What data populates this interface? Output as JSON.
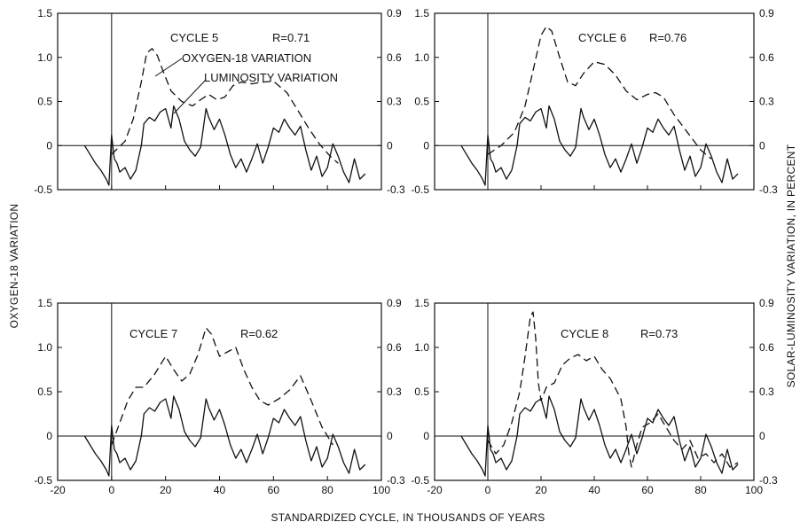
{
  "figure": {
    "left_axis_label": "OXYGEN-18 VARIATION",
    "right_axis_label": "SOLAR-LUMINOSITY VARIATION, IN PERCENT",
    "x_axis_label": "STANDARDIZED CYCLE, IN THOUSANDS OF YEARS",
    "legend_oxygen": "OXYGEN-18 VARIATION",
    "legend_luminosity": "LUMINOSITY VARIATION"
  },
  "chart_data": [
    {
      "type": "line",
      "cycle_label": "CYCLE 5",
      "r_label": "R=0.71",
      "xlim": [
        -20,
        100
      ],
      "ylim_left": [
        -0.5,
        1.5
      ],
      "ylim_right": [
        -0.3,
        0.9
      ],
      "x_ticks": [
        "-20",
        "0",
        "20",
        "40",
        "60",
        "80",
        "100"
      ],
      "y_ticks_left": [
        "1.5",
        "1.0",
        "0.5",
        "0",
        "-0.5"
      ],
      "y_ticks_right": [
        "0.9",
        "0.6",
        "0.3",
        "0",
        "-0.3"
      ],
      "series": [
        {
          "name": "OXYGEN-18 VARIATION",
          "style": "dashed",
          "x": [
            0,
            5,
            8,
            11,
            13,
            15,
            17,
            19,
            22,
            26,
            30,
            33,
            36,
            39,
            42,
            45,
            48,
            52,
            56,
            60,
            65,
            70,
            73,
            77,
            81,
            84
          ],
          "y": [
            -0.1,
            0.05,
            0.3,
            0.72,
            1.05,
            1.1,
            1.02,
            0.85,
            0.62,
            0.5,
            0.45,
            0.52,
            0.58,
            0.52,
            0.55,
            0.68,
            0.72,
            0.7,
            0.72,
            0.73,
            0.6,
            0.35,
            0.2,
            0.02,
            -0.12,
            -0.2
          ]
        },
        {
          "name": "LUMINOSITY VARIATION",
          "style": "solid",
          "x": [
            -10,
            -8,
            -6,
            -4,
            -2,
            -1,
            0,
            1,
            2,
            3,
            5,
            7,
            9,
            11,
            12,
            14,
            16,
            18,
            20,
            22,
            23,
            25,
            27,
            29,
            31,
            33,
            35,
            36,
            38,
            40,
            42,
            44,
            46,
            48,
            50,
            52,
            54,
            56,
            58,
            60,
            62,
            64,
            66,
            68,
            70,
            72,
            74,
            76,
            78,
            80,
            82,
            84,
            86,
            88,
            90,
            92,
            94
          ],
          "y": [
            0,
            -0.1,
            -0.2,
            -0.28,
            -0.38,
            -0.45,
            0.12,
            -0.15,
            -0.2,
            -0.3,
            -0.25,
            -0.38,
            -0.28,
            0.0,
            0.25,
            0.32,
            0.28,
            0.38,
            0.42,
            0.2,
            0.45,
            0.3,
            0.05,
            -0.05,
            -0.12,
            -0.02,
            0.42,
            0.32,
            0.18,
            0.3,
            0.12,
            -0.1,
            -0.25,
            -0.15,
            -0.3,
            -0.15,
            0.02,
            -0.2,
            -0.02,
            0.2,
            0.15,
            0.3,
            0.2,
            0.12,
            0.22,
            -0.05,
            -0.28,
            -0.12,
            -0.35,
            -0.25,
            0.02,
            -0.12,
            -0.3,
            -0.42,
            -0.15,
            -0.38,
            -0.32
          ]
        }
      ]
    },
    {
      "type": "line",
      "cycle_label": "CYCLE 6",
      "r_label": "R=0.76",
      "xlim": [
        -20,
        100
      ],
      "ylim_left": [
        -0.5,
        1.5
      ],
      "ylim_right": [
        -0.3,
        0.9
      ],
      "x_ticks": [
        "-20",
        "0",
        "20",
        "40",
        "60",
        "80",
        "100"
      ],
      "y_ticks_left": [
        "1.5",
        "1.0",
        "0.5",
        "0",
        "-0.5"
      ],
      "y_ticks_right": [
        "0.9",
        "0.6",
        "0.3",
        "0",
        "-0.3"
      ],
      "series": [
        {
          "name": "OXYGEN-18 VARIATION",
          "style": "dashed",
          "x": [
            0,
            5,
            10,
            14,
            17,
            20,
            22,
            24,
            27,
            30,
            33,
            36,
            40,
            44,
            48,
            52,
            56,
            60,
            63,
            66,
            70,
            75,
            80,
            84
          ],
          "y": [
            -0.1,
            0.0,
            0.15,
            0.45,
            0.85,
            1.25,
            1.35,
            1.3,
            1.0,
            0.72,
            0.68,
            0.82,
            0.95,
            0.92,
            0.8,
            0.62,
            0.52,
            0.58,
            0.6,
            0.55,
            0.35,
            0.15,
            -0.05,
            -0.15
          ]
        },
        {
          "name": "LUMINOSITY VARIATION",
          "style": "solid",
          "x": [
            -10,
            -8,
            -6,
            -4,
            -2,
            -1,
            0,
            1,
            2,
            3,
            5,
            7,
            9,
            11,
            12,
            14,
            16,
            18,
            20,
            22,
            23,
            25,
            27,
            29,
            31,
            33,
            35,
            36,
            38,
            40,
            42,
            44,
            46,
            48,
            50,
            52,
            54,
            56,
            58,
            60,
            62,
            64,
            66,
            68,
            70,
            72,
            74,
            76,
            78,
            80,
            82,
            84,
            86,
            88,
            90,
            92,
            94
          ],
          "y": [
            0,
            -0.1,
            -0.2,
            -0.28,
            -0.38,
            -0.45,
            0.12,
            -0.15,
            -0.2,
            -0.3,
            -0.25,
            -0.38,
            -0.28,
            0.0,
            0.25,
            0.32,
            0.28,
            0.38,
            0.42,
            0.2,
            0.45,
            0.3,
            0.05,
            -0.05,
            -0.12,
            -0.02,
            0.42,
            0.32,
            0.18,
            0.3,
            0.12,
            -0.1,
            -0.25,
            -0.15,
            -0.3,
            -0.15,
            0.02,
            -0.2,
            -0.02,
            0.2,
            0.15,
            0.3,
            0.2,
            0.12,
            0.22,
            -0.05,
            -0.28,
            -0.12,
            -0.35,
            -0.25,
            0.02,
            -0.12,
            -0.3,
            -0.42,
            -0.15,
            -0.38,
            -0.32
          ]
        }
      ]
    },
    {
      "type": "line",
      "cycle_label": "CYCLE 7",
      "r_label": "R=0.62",
      "xlim": [
        -20,
        100
      ],
      "ylim_left": [
        -0.5,
        1.5
      ],
      "ylim_right": [
        -0.3,
        0.9
      ],
      "x_ticks": [
        "-20",
        "0",
        "20",
        "40",
        "60",
        "80",
        "100"
      ],
      "y_ticks_left": [
        "1.5",
        "1.0",
        "0.5",
        "0",
        "-0.5"
      ],
      "y_ticks_right": [
        "0.9",
        "0.6",
        "0.3",
        "0",
        "-0.3"
      ],
      "series": [
        {
          "name": "OXYGEN-18 VARIATION",
          "style": "dashed",
          "x": [
            0,
            3,
            6,
            9,
            12,
            16,
            20,
            23,
            26,
            29,
            32,
            35,
            37,
            40,
            43,
            46,
            49,
            52,
            55,
            58,
            62,
            66,
            70,
            74,
            78,
            82
          ],
          "y": [
            -0.1,
            0.15,
            0.4,
            0.55,
            0.55,
            0.7,
            0.9,
            0.75,
            0.62,
            0.7,
            0.92,
            1.22,
            1.15,
            0.9,
            0.95,
            1.0,
            0.75,
            0.55,
            0.4,
            0.35,
            0.42,
            0.52,
            0.68,
            0.4,
            0.1,
            -0.1
          ]
        },
        {
          "name": "LUMINOSITY VARIATION",
          "style": "solid",
          "x": [
            -10,
            -8,
            -6,
            -4,
            -2,
            -1,
            0,
            1,
            2,
            3,
            5,
            7,
            9,
            11,
            12,
            14,
            16,
            18,
            20,
            22,
            23,
            25,
            27,
            29,
            31,
            33,
            35,
            36,
            38,
            40,
            42,
            44,
            46,
            48,
            50,
            52,
            54,
            56,
            58,
            60,
            62,
            64,
            66,
            68,
            70,
            72,
            74,
            76,
            78,
            80,
            82,
            84,
            86,
            88,
            90,
            92,
            94
          ],
          "y": [
            0,
            -0.1,
            -0.2,
            -0.28,
            -0.38,
            -0.45,
            0.12,
            -0.15,
            -0.2,
            -0.3,
            -0.25,
            -0.38,
            -0.28,
            0.0,
            0.25,
            0.32,
            0.28,
            0.38,
            0.42,
            0.2,
            0.45,
            0.3,
            0.05,
            -0.05,
            -0.12,
            -0.02,
            0.42,
            0.32,
            0.18,
            0.3,
            0.12,
            -0.1,
            -0.25,
            -0.15,
            -0.3,
            -0.15,
            0.02,
            -0.2,
            -0.02,
            0.2,
            0.15,
            0.3,
            0.2,
            0.12,
            0.22,
            -0.05,
            -0.28,
            -0.12,
            -0.35,
            -0.25,
            0.02,
            -0.12,
            -0.3,
            -0.42,
            -0.15,
            -0.38,
            -0.32
          ]
        }
      ]
    },
    {
      "type": "line",
      "cycle_label": "CYCLE 8",
      "r_label": "R=0.73",
      "xlim": [
        -20,
        100
      ],
      "ylim_left": [
        -0.5,
        1.5
      ],
      "ylim_right": [
        -0.3,
        0.9
      ],
      "x_ticks": [
        "-20",
        "0",
        "20",
        "40",
        "60",
        "80",
        "100"
      ],
      "y_ticks_left": [
        "1.5",
        "1.0",
        "0.5",
        "0",
        "-0.5"
      ],
      "y_ticks_right": [
        "0.9",
        "0.6",
        "0.3",
        "0",
        "-0.3"
      ],
      "series": [
        {
          "name": "OXYGEN-18 VARIATION",
          "style": "dashed",
          "x": [
            0,
            3,
            6,
            9,
            12,
            14,
            16,
            17,
            18,
            19,
            20,
            22,
            25,
            28,
            31,
            34,
            37,
            40,
            43,
            46,
            50,
            52,
            53,
            54,
            56,
            58,
            61,
            64,
            67,
            70,
            73,
            76,
            79,
            82,
            85,
            88,
            91,
            94
          ],
          "y": [
            -0.05,
            -0.2,
            -0.1,
            0.15,
            0.5,
            0.9,
            1.35,
            1.4,
            1.1,
            0.6,
            0.4,
            0.55,
            0.6,
            0.8,
            0.88,
            0.92,
            0.85,
            0.9,
            0.75,
            0.65,
            0.42,
            0.1,
            -0.2,
            -0.35,
            -0.1,
            0.1,
            0.15,
            0.25,
            0.1,
            -0.05,
            -0.15,
            -0.05,
            -0.25,
            -0.2,
            -0.3,
            -0.2,
            -0.35,
            -0.3
          ]
        },
        {
          "name": "LUMINOSITY VARIATION",
          "style": "solid",
          "x": [
            -10,
            -8,
            -6,
            -4,
            -2,
            -1,
            0,
            1,
            2,
            3,
            5,
            7,
            9,
            11,
            12,
            14,
            16,
            18,
            20,
            22,
            23,
            25,
            27,
            29,
            31,
            33,
            35,
            36,
            38,
            40,
            42,
            44,
            46,
            48,
            50,
            52,
            54,
            56,
            58,
            60,
            62,
            64,
            66,
            68,
            70,
            72,
            74,
            76,
            78,
            80,
            82,
            84,
            86,
            88,
            90,
            92,
            94
          ],
          "y": [
            0,
            -0.1,
            -0.2,
            -0.28,
            -0.38,
            -0.45,
            0.12,
            -0.15,
            -0.2,
            -0.3,
            -0.25,
            -0.38,
            -0.28,
            0.0,
            0.25,
            0.32,
            0.28,
            0.38,
            0.42,
            0.2,
            0.45,
            0.3,
            0.05,
            -0.05,
            -0.12,
            -0.02,
            0.42,
            0.32,
            0.18,
            0.3,
            0.12,
            -0.1,
            -0.25,
            -0.15,
            -0.3,
            -0.15,
            0.02,
            -0.2,
            -0.02,
            0.2,
            0.15,
            0.3,
            0.2,
            0.12,
            0.22,
            -0.05,
            -0.28,
            -0.12,
            -0.35,
            -0.25,
            0.02,
            -0.12,
            -0.3,
            -0.42,
            -0.15,
            -0.38,
            -0.32
          ]
        }
      ]
    }
  ]
}
